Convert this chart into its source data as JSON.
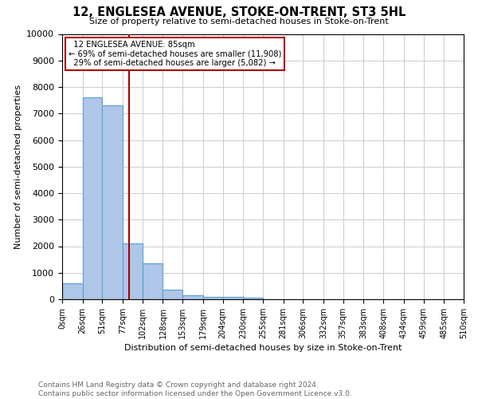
{
  "title": "12, ENGLESEA AVENUE, STOKE-ON-TRENT, ST3 5HL",
  "subtitle": "Size of property relative to semi-detached houses in Stoke-on-Trent",
  "xlabel": "Distribution of semi-detached houses by size in Stoke-on-Trent",
  "ylabel": "Number of semi-detached properties",
  "footnote": "Contains HM Land Registry data © Crown copyright and database right 2024.\nContains public sector information licensed under the Open Government Licence v3.0.",
  "bin_labels": [
    "0sqm",
    "26sqm",
    "51sqm",
    "77sqm",
    "102sqm",
    "128sqm",
    "153sqm",
    "179sqm",
    "204sqm",
    "230sqm",
    "255sqm",
    "281sqm",
    "306sqm",
    "332sqm",
    "357sqm",
    "383sqm",
    "408sqm",
    "434sqm",
    "459sqm",
    "485sqm",
    "510sqm"
  ],
  "bar_values": [
    600,
    7600,
    7300,
    2100,
    1350,
    350,
    150,
    100,
    80,
    50,
    0,
    0,
    0,
    0,
    0,
    0,
    0,
    0,
    0,
    0
  ],
  "bar_color": "#aec6e8",
  "bar_edge_color": "#5a9fd4",
  "ylim": [
    0,
    10000
  ],
  "yticks": [
    0,
    1000,
    2000,
    3000,
    4000,
    5000,
    6000,
    7000,
    8000,
    9000,
    10000
  ],
  "property_size": 85,
  "property_label": "12 ENGLESEA AVENUE: 85sqm",
  "pct_smaller": 69,
  "n_smaller": 11908,
  "pct_larger": 29,
  "n_larger": 5082,
  "vline_color": "#aa0000",
  "annotation_box_color": "#aa0000",
  "bin_starts": [
    0,
    26,
    51,
    77,
    102,
    128,
    153,
    179,
    204,
    230,
    255,
    281,
    306,
    332,
    357,
    383,
    408,
    434,
    459,
    485,
    510
  ]
}
